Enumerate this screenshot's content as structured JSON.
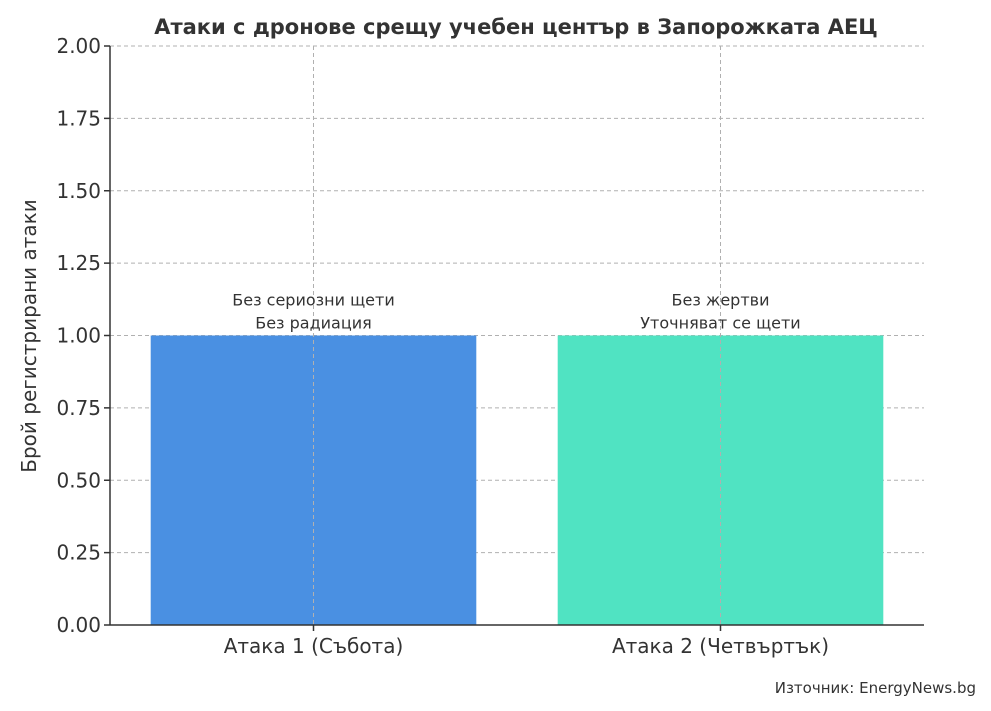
{
  "chart_data": {
    "type": "bar",
    "title": "Атаки с дронове срещу учебен център в Запорожката АЕЦ",
    "ylabel": "Брой регистрирани атаки",
    "xlabel": "",
    "categories": [
      "Атака 1 (Събота)",
      "Атака 2 (Четвъртък)"
    ],
    "values": [
      1,
      1
    ],
    "colors": [
      "#4a90e2",
      "#50e3c2"
    ],
    "annotations": [
      [
        "Без сериозни щети",
        "Без радиация"
      ],
      [
        "Без жертви",
        "Уточняват се щети"
      ]
    ],
    "ylim": [
      0,
      2
    ],
    "yticks": [
      "0.00",
      "0.25",
      "0.50",
      "0.75",
      "1.00",
      "1.25",
      "1.50",
      "1.75",
      "2.00"
    ],
    "grid": true,
    "source": "Източник: EnergyNews.bg"
  }
}
